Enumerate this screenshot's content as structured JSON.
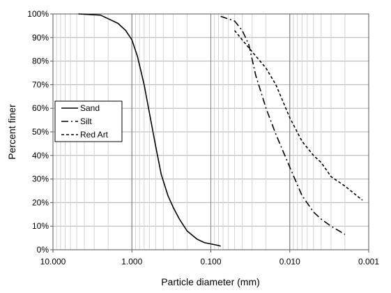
{
  "chart_data": {
    "type": "line",
    "title": "",
    "xlabel": "Particle diameter (mm)",
    "ylabel": "Percent finer",
    "x_scale": "log",
    "x_reversed": true,
    "xlim": [
      10,
      0.001
    ],
    "ylim": [
      0,
      100
    ],
    "x_tick_labels": [
      "10.000",
      "1.000",
      "0.100",
      "0.010",
      "0.001"
    ],
    "y_tick_labels": [
      "0%",
      "10%",
      "20%",
      "30%",
      "40%",
      "50%",
      "60%",
      "70%",
      "80%",
      "90%",
      "100%"
    ],
    "grid": true,
    "legend_position": "left",
    "series": [
      {
        "name": "Sand",
        "line_style": "solid",
        "color": "#000000",
        "x": [
          4.75,
          2.5,
          2.0,
          1.5,
          1.2,
          1.0,
          0.85,
          0.7,
          0.6,
          0.5,
          0.425,
          0.35,
          0.3,
          0.25,
          0.2,
          0.15,
          0.12,
          0.1,
          0.08,
          0.075
        ],
        "y": [
          100,
          99.5,
          98,
          96,
          93,
          89,
          82,
          70,
          58,
          44,
          32,
          23,
          18,
          13,
          8,
          4.5,
          3,
          2.5,
          1.8,
          1.5
        ]
      },
      {
        "name": "Silt",
        "line_style": "dash-dot",
        "color": "#000000",
        "x": [
          0.075,
          0.05,
          0.04,
          0.033,
          0.027,
          0.02,
          0.015,
          0.01,
          0.007,
          0.005,
          0.004,
          0.003,
          0.002
        ],
        "y": [
          99,
          97,
          93,
          87,
          74,
          60,
          49,
          35,
          23,
          16,
          13,
          10,
          6.5
        ]
      },
      {
        "name": "Red Art",
        "line_style": "dashed",
        "color": "#000000",
        "x": [
          0.05,
          0.04,
          0.03,
          0.02,
          0.015,
          0.01,
          0.007,
          0.005,
          0.004,
          0.003,
          0.002,
          0.0012
        ],
        "y": [
          93,
          89,
          84,
          77,
          70,
          56,
          46,
          40,
          37,
          31,
          27,
          21
        ]
      }
    ]
  }
}
